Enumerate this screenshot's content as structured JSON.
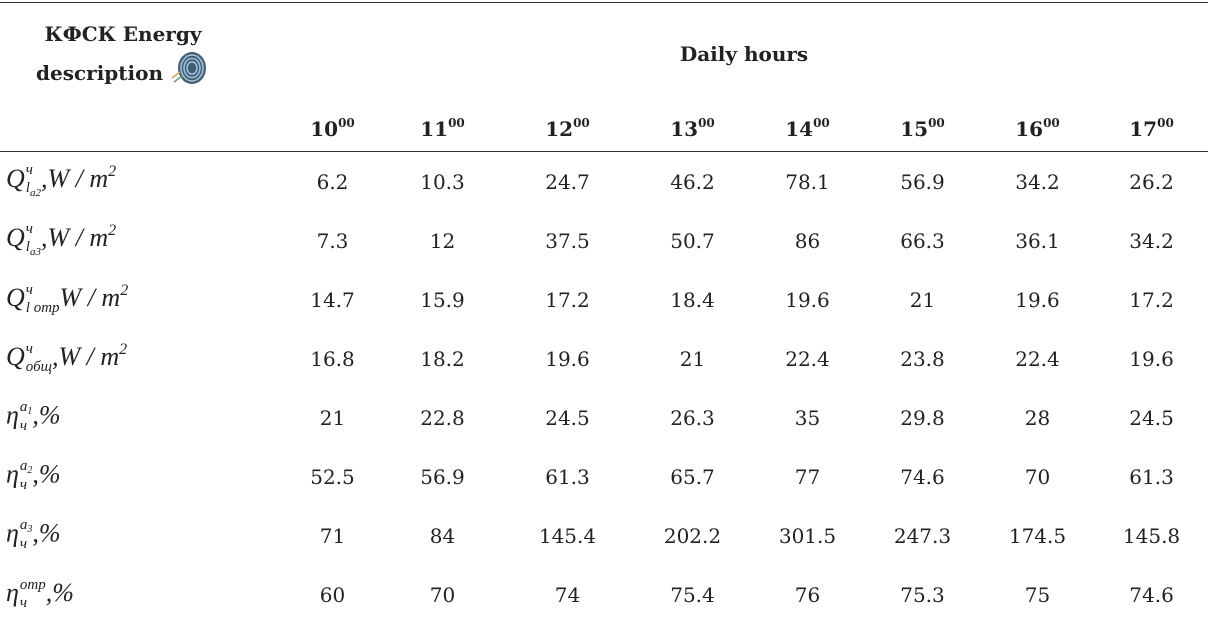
{
  "table": {
    "header": {
      "label": "КФСК Energy description",
      "group": "Daily hours"
    },
    "hours": [
      {
        "hour": "10",
        "min": "00"
      },
      {
        "hour": "11",
        "min": "00"
      },
      {
        "hour": "12",
        "min": "00"
      },
      {
        "hour": "13",
        "min": "00"
      },
      {
        "hour": "14",
        "min": "00"
      },
      {
        "hour": "15",
        "min": "00"
      },
      {
        "hour": "16",
        "min": "00"
      },
      {
        "hour": "17",
        "min": "00"
      }
    ],
    "rows": [
      {
        "label": {
          "base": "Q",
          "sup": "ч",
          "sub": "l",
          "sub_sub": "a2",
          "rest": ",W / m",
          "rest_sup": "2"
        },
        "values": [
          6.2,
          10.3,
          24.7,
          46.2,
          78.1,
          56.9,
          34.2,
          26.2
        ]
      },
      {
        "label": {
          "base": "Q",
          "sup": "ч",
          "sub": "l",
          "sub_sub": "a3",
          "rest": ",W / m",
          "rest_sup": "2"
        },
        "values": [
          7.3,
          12,
          37.5,
          50.7,
          86,
          66.3,
          36.1,
          34.2
        ]
      },
      {
        "label": {
          "base": "Q",
          "sup": "ч",
          "sub": "l отр",
          "rest": "W / m",
          "rest_sup": "2"
        },
        "values": [
          14.7,
          15.9,
          17.2,
          18.4,
          19.6,
          21,
          19.6,
          17.2
        ]
      },
      {
        "label": {
          "base": "Q",
          "sup": "ч",
          "sub": "общ",
          "rest": ",W / m",
          "rest_sup": "2"
        },
        "values": [
          16.8,
          18.2,
          19.6,
          21,
          22.4,
          23.8,
          22.4,
          19.6
        ]
      },
      {
        "label": {
          "base": "η",
          "sup": "a",
          "sup_sub": "1",
          "sub": "ч",
          "rest": ",%"
        },
        "values": [
          21,
          22.8,
          24.5,
          26.3,
          35,
          29.8,
          28,
          24.5
        ]
      },
      {
        "label": {
          "base": "η",
          "sup": "a",
          "sup_sub": "2",
          "sub": "ч",
          "rest": ",%"
        },
        "values": [
          52.5,
          56.9,
          61.3,
          65.7,
          77,
          74.6,
          70,
          61.3
        ]
      },
      {
        "label": {
          "base": "η",
          "sup": "a",
          "sup_sub": "3",
          "sub": "ч",
          "rest": ",%"
        },
        "values": [
          71,
          84,
          145.4,
          202.2,
          301.5,
          247.3,
          174.5,
          145.8
        ]
      },
      {
        "label": {
          "base": "η",
          "sup": "отр",
          "sub": "ч",
          "rest": ",%"
        },
        "values": [
          60,
          70,
          74,
          75.4,
          76,
          75.3,
          75,
          74.6
        ]
      }
    ]
  }
}
